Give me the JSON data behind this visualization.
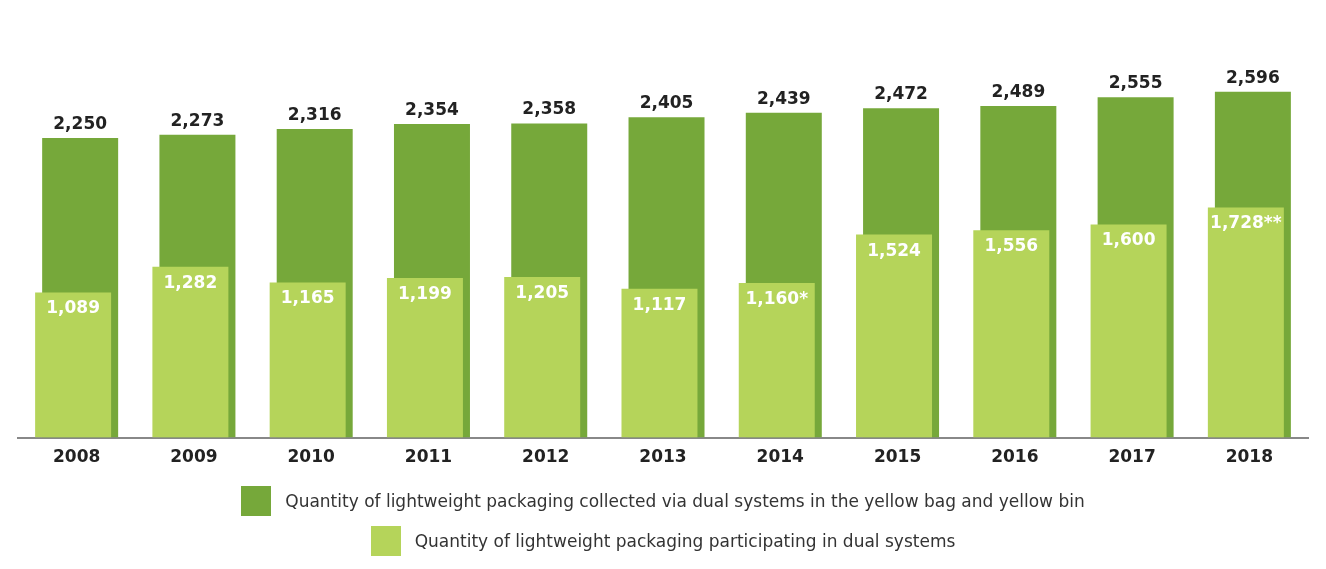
{
  "chart_data": {
    "type": "bar",
    "categories": [
      "2008",
      "2009",
      "2010",
      "2011",
      "2012",
      "2013",
      "2014",
      "2015",
      "2016",
      "2017",
      "2018"
    ],
    "series": [
      {
        "name": "Quantity of lightweight packaging collected via dual systems in the yellow bag and yellow bin",
        "color": "#76a83a",
        "values": [
          2250,
          2273,
          2316,
          2354,
          2358,
          2405,
          2439,
          2472,
          2489,
          2555,
          2596
        ],
        "value_labels": [
          "2,250",
          "2,273",
          "2,316",
          "2,354",
          "2,358",
          "2,405",
          "2,439",
          "2,472",
          "2,489",
          "2,555",
          "2,596"
        ]
      },
      {
        "name": "Quantity of lightweight packaging participating in dual systems",
        "color": "#b5d45a",
        "values": [
          1089,
          1282,
          1165,
          1199,
          1205,
          1117,
          1160,
          1524,
          1556,
          1600,
          1728
        ],
        "value_labels": [
          "1,089",
          "1,282",
          "1,165",
          "1,199",
          "1,205",
          "1,117",
          "1,160*",
          "1,524",
          "1,556",
          "1,600",
          "1,728**"
        ]
      }
    ],
    "legend": "bottom",
    "grid": false
  }
}
